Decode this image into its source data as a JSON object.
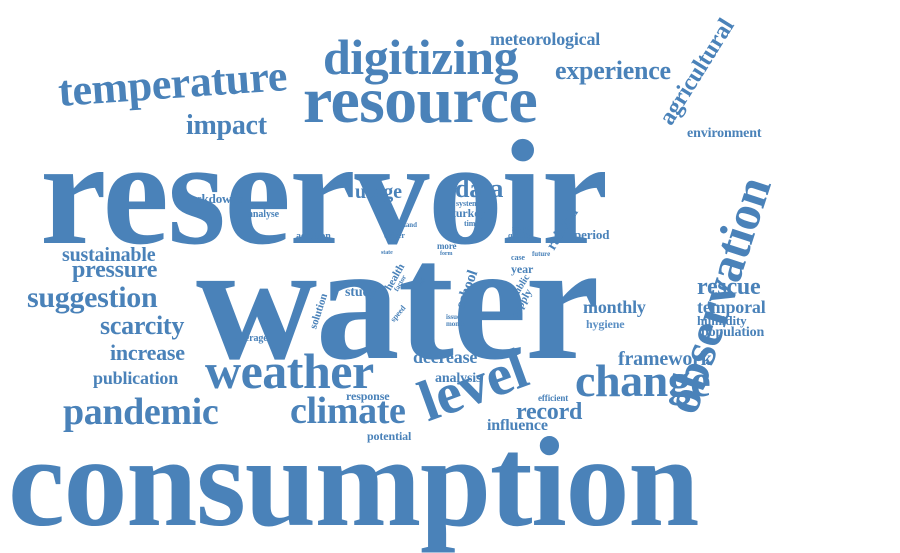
{
  "color": "#4a82b9",
  "words": [
    "reservoir",
    "water",
    "consumption",
    "resource",
    "observation",
    "level",
    "weather",
    "change",
    "climate",
    "pandemic",
    "digitizing",
    "temperature",
    "experience",
    "meteorological",
    "agricultural",
    "environment",
    "impact",
    "data",
    "usage",
    "lockdowns",
    "analyse",
    "sustainable",
    "pressure",
    "suggestion",
    "scarcity",
    "increase",
    "publication",
    "decrease",
    "analysis",
    "response",
    "record",
    "influence",
    "potential",
    "framework",
    "rescue",
    "temporal",
    "humidity",
    "population",
    "monthly",
    "hygiene",
    "rainfall",
    "period",
    "system",
    "turkey",
    "time",
    "hand",
    "driver",
    "addition",
    "growth",
    "quality",
    "case",
    "future",
    "form",
    "more",
    "state",
    "health",
    "factor",
    "school",
    "study",
    "year",
    "public",
    "supply",
    "solution",
    "average",
    "speed",
    "issue",
    "month",
    "efficient",
    "wall"
  ]
}
